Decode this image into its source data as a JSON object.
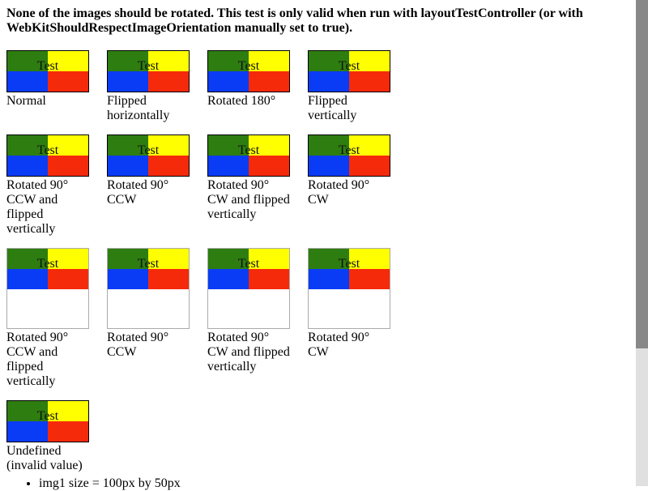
{
  "colors": {
    "green": "#2e7d10",
    "yellow": "#ffff00",
    "blue": "#0a3cf5",
    "red": "#f52a0a"
  },
  "header": {
    "text": "None of the images should be rotated. This test is only valid when run with layoutTestController (or with WebKitShouldRespectImageOrientation manually set to true)."
  },
  "overlay_text": "Test",
  "row1": [
    {
      "caption": "Normal"
    },
    {
      "caption": "Flipped horizontally"
    },
    {
      "caption": "Rotated 180°"
    },
    {
      "caption": "Flipped vertically"
    }
  ],
  "row2": [
    {
      "caption": "Rotated 90° CCW and flipped vertically"
    },
    {
      "caption": "Rotated 90° CCW"
    },
    {
      "caption": "Rotated 90° CW and flipped vertically"
    },
    {
      "caption": "Rotated 90° CW"
    }
  ],
  "row3": [
    {
      "caption": "Rotated 90° CCW and flipped vertically"
    },
    {
      "caption": "Rotated 90° CCW"
    },
    {
      "caption": "Rotated 90° CW and flipped vertically"
    },
    {
      "caption": "Rotated 90° CW"
    }
  ],
  "row4": [
    {
      "caption": "Undefined (invalid value)"
    }
  ],
  "notes": [
    "img1 size = 100px by 50px"
  ]
}
